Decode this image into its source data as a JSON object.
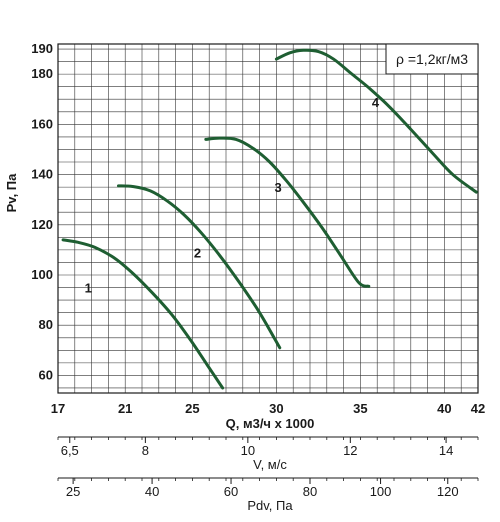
{
  "chart_data": {
    "type": "line",
    "xlabel": "Q, м3/ч x 1000",
    "ylabel": "Pv, Па",
    "xlim": [
      17,
      42
    ],
    "ylim": [
      53,
      192
    ],
    "x_ticks": [
      17,
      21,
      25,
      30,
      35,
      40,
      42
    ],
    "y_ticks": [
      60,
      80,
      100,
      120,
      140,
      160,
      180,
      190
    ],
    "grid": true,
    "annotation": "ρ =1,2кг/м3",
    "line_color": "#1e5e32",
    "series": [
      {
        "name": "1",
        "label_at": [
          18.8,
          93
        ],
        "points": [
          [
            17.3,
            114
          ],
          [
            18.2,
            113
          ],
          [
            19.2,
            111
          ],
          [
            20.3,
            107
          ],
          [
            21.4,
            101
          ],
          [
            22.6,
            93
          ],
          [
            23.8,
            84
          ],
          [
            24.9,
            74
          ],
          [
            25.9,
            64
          ],
          [
            26.8,
            55
          ]
        ]
      },
      {
        "name": "2",
        "label_at": [
          25.3,
          107
        ],
        "points": [
          [
            20.6,
            135.5
          ],
          [
            21.5,
            135.2
          ],
          [
            22.5,
            133.5
          ],
          [
            23.5,
            129.5
          ],
          [
            24.5,
            124
          ],
          [
            25.5,
            117
          ],
          [
            26.6,
            108
          ],
          [
            27.8,
            97
          ],
          [
            29,
            85
          ],
          [
            30.2,
            71
          ]
        ]
      },
      {
        "name": "3",
        "label_at": [
          30.1,
          133
        ],
        "points": [
          [
            25.8,
            154
          ],
          [
            26.6,
            154.5
          ],
          [
            27.6,
            154
          ],
          [
            28.6,
            150.5
          ],
          [
            29.6,
            145
          ],
          [
            30.6,
            137.5
          ],
          [
            31.6,
            129
          ],
          [
            32.7,
            119
          ],
          [
            33.8,
            108
          ],
          [
            34.9,
            97
          ],
          [
            35.5,
            95.5
          ]
        ]
      },
      {
        "name": "4",
        "label_at": [
          35.9,
          167
        ],
        "points": [
          [
            30,
            186
          ],
          [
            30.8,
            188.5
          ],
          [
            31.6,
            189.5
          ],
          [
            32.5,
            189
          ],
          [
            33.4,
            186
          ],
          [
            34.5,
            180
          ],
          [
            35.6,
            174
          ],
          [
            36.8,
            166.5
          ],
          [
            38,
            158
          ],
          [
            39.3,
            148.5
          ],
          [
            40.5,
            140
          ],
          [
            41.9,
            133
          ]
        ]
      }
    ],
    "secondary_axes": [
      {
        "label": "V, м/с",
        "ticks": [
          {
            "label": "6,5",
            "x": 17.7
          },
          {
            "label": "8",
            "x": 22.2
          },
          {
            "label": "10",
            "x": 28.3
          },
          {
            "label": "12",
            "x": 34.4
          },
          {
            "label": "14",
            "x": 40.1
          }
        ]
      },
      {
        "label": "Pdv, Па",
        "ticks": [
          {
            "label": "25",
            "x": 17.9
          },
          {
            "label": "40",
            "x": 22.6
          },
          {
            "label": "60",
            "x": 27.3
          },
          {
            "label": "80",
            "x": 32.0
          },
          {
            "label": "100",
            "x": 36.2
          },
          {
            "label": "120",
            "x": 40.2
          }
        ]
      }
    ]
  }
}
